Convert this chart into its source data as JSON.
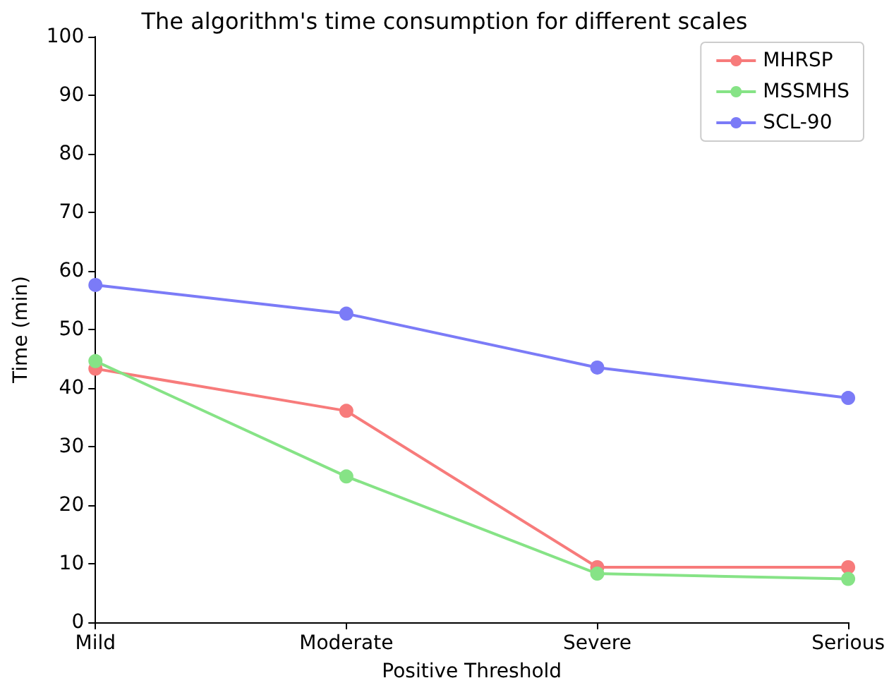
{
  "chart_data": {
    "type": "line",
    "title": "The algorithm's time consumption for different scales",
    "xlabel": "Positive Threshold",
    "ylabel": "Time (min)",
    "categories": [
      "Mild",
      "Moderate",
      "Severe",
      "Serious"
    ],
    "series": [
      {
        "name": "MHRSP",
        "color": "#f77b7b",
        "values": [
          43.3,
          36.1,
          9.4,
          9.4
        ]
      },
      {
        "name": "MSSMHS",
        "color": "#86e386",
        "values": [
          44.6,
          24.9,
          8.3,
          7.4
        ]
      },
      {
        "name": "SCL-90",
        "color": "#7b7bf7",
        "values": [
          57.6,
          52.7,
          43.5,
          38.3
        ]
      }
    ],
    "ylim": [
      0,
      100
    ],
    "yticks": [
      0,
      10,
      20,
      30,
      40,
      50,
      60,
      70,
      80,
      90,
      100
    ],
    "grid": false,
    "legend": "top right",
    "marker": "circle",
    "line_style": "solid"
  }
}
